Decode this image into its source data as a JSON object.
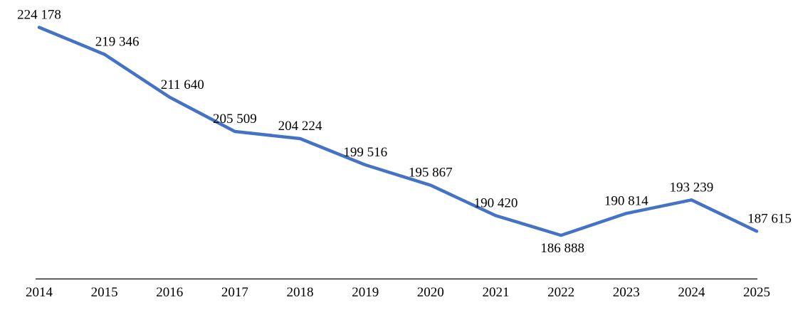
{
  "chart_data": {
    "type": "line",
    "title": "",
    "xlabel": "",
    "ylabel": "",
    "categories": [
      "2014",
      "2015",
      "2016",
      "2017",
      "2018",
      "2019",
      "2020",
      "2021",
      "2022",
      "2023",
      "2024",
      "2025"
    ],
    "series": [
      {
        "name": "",
        "values": [
          224178,
          219346,
          211640,
          205509,
          204224,
          199516,
          195867,
          190420,
          186888,
          190814,
          193239,
          187615
        ]
      }
    ],
    "data_labels": [
      "224 178",
      "219 346",
      "211 640",
      "205 509",
      "204 224",
      "199 516",
      "195 867",
      "190 420",
      "186 888",
      "190 814",
      "193 239",
      "187 615"
    ],
    "label_positions": [
      "above",
      "above-right",
      "above-right",
      "above",
      "above",
      "above",
      "above",
      "above",
      "below",
      "above",
      "above",
      "above-right"
    ],
    "ylim": [
      179000,
      225000
    ],
    "grid": false,
    "legend": "none",
    "y_axis_visible": false,
    "x_axis_visible": true,
    "line_color": "#4472C4",
    "text_color": "#000000",
    "axis_color": "#000000",
    "background_color": "#ffffff"
  }
}
